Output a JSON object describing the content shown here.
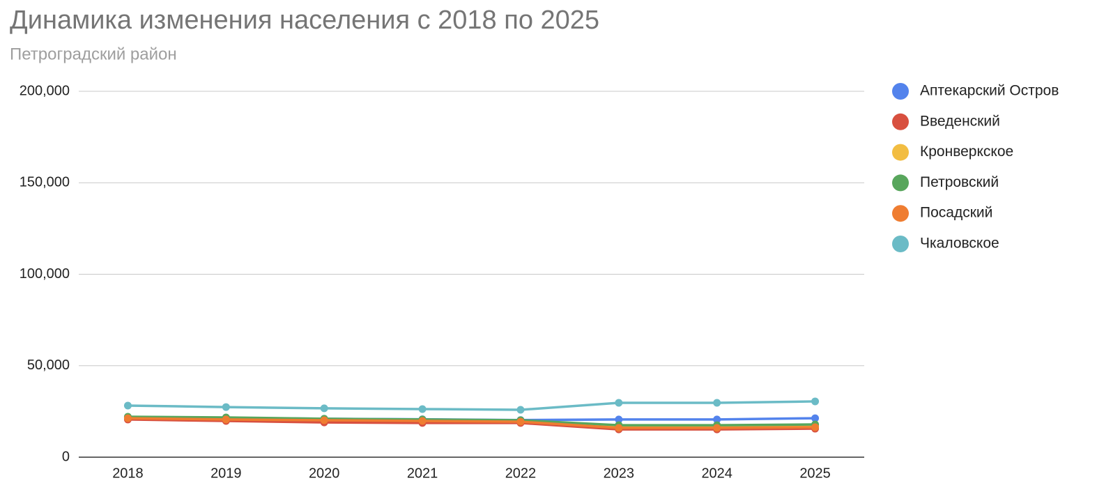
{
  "chart_data": {
    "type": "line",
    "title": "Динамика изменения населения с 2018 по 2025",
    "subtitle": "Петроградский район",
    "categories": [
      "2018",
      "2019",
      "2020",
      "2021",
      "2022",
      "2023",
      "2024",
      "2025"
    ],
    "series": [
      {
        "name": "Аптекарский Остров",
        "color": "#5383ec",
        "values": [
          22000,
          21500,
          21000,
          20700,
          20300,
          20600,
          20600,
          21300
        ]
      },
      {
        "name": "Введенский",
        "color": "#d8503f",
        "values": [
          20600,
          19800,
          19000,
          18700,
          18700,
          15200,
          15200,
          15600
        ]
      },
      {
        "name": "Кронверкское",
        "color": "#f2bd42",
        "values": [
          21600,
          21000,
          20600,
          20200,
          19900,
          16600,
          16600,
          17000
        ]
      },
      {
        "name": "Петровский",
        "color": "#58a65c",
        "values": [
          22100,
          21700,
          21000,
          20600,
          20200,
          17500,
          17500,
          17900
        ]
      },
      {
        "name": "Посадский",
        "color": "#ef7d31",
        "values": [
          21300,
          20600,
          20200,
          19800,
          19400,
          16000,
          16000,
          16400
        ]
      },
      {
        "name": "Чкаловское",
        "color": "#6bbbc6",
        "values": [
          28200,
          27400,
          26700,
          26300,
          25900,
          29700,
          29700,
          30500
        ]
      }
    ],
    "ylim": [
      0,
      200000
    ],
    "yticks": [
      0,
      {
        "value": 50000,
        "label": "50,000"
      },
      {
        "value": 100000,
        "label": "100,000"
      },
      {
        "value": 150000,
        "label": "150,000"
      },
      {
        "value": 200000,
        "label": "200,000"
      }
    ],
    "grid": true,
    "legend": "right"
  }
}
